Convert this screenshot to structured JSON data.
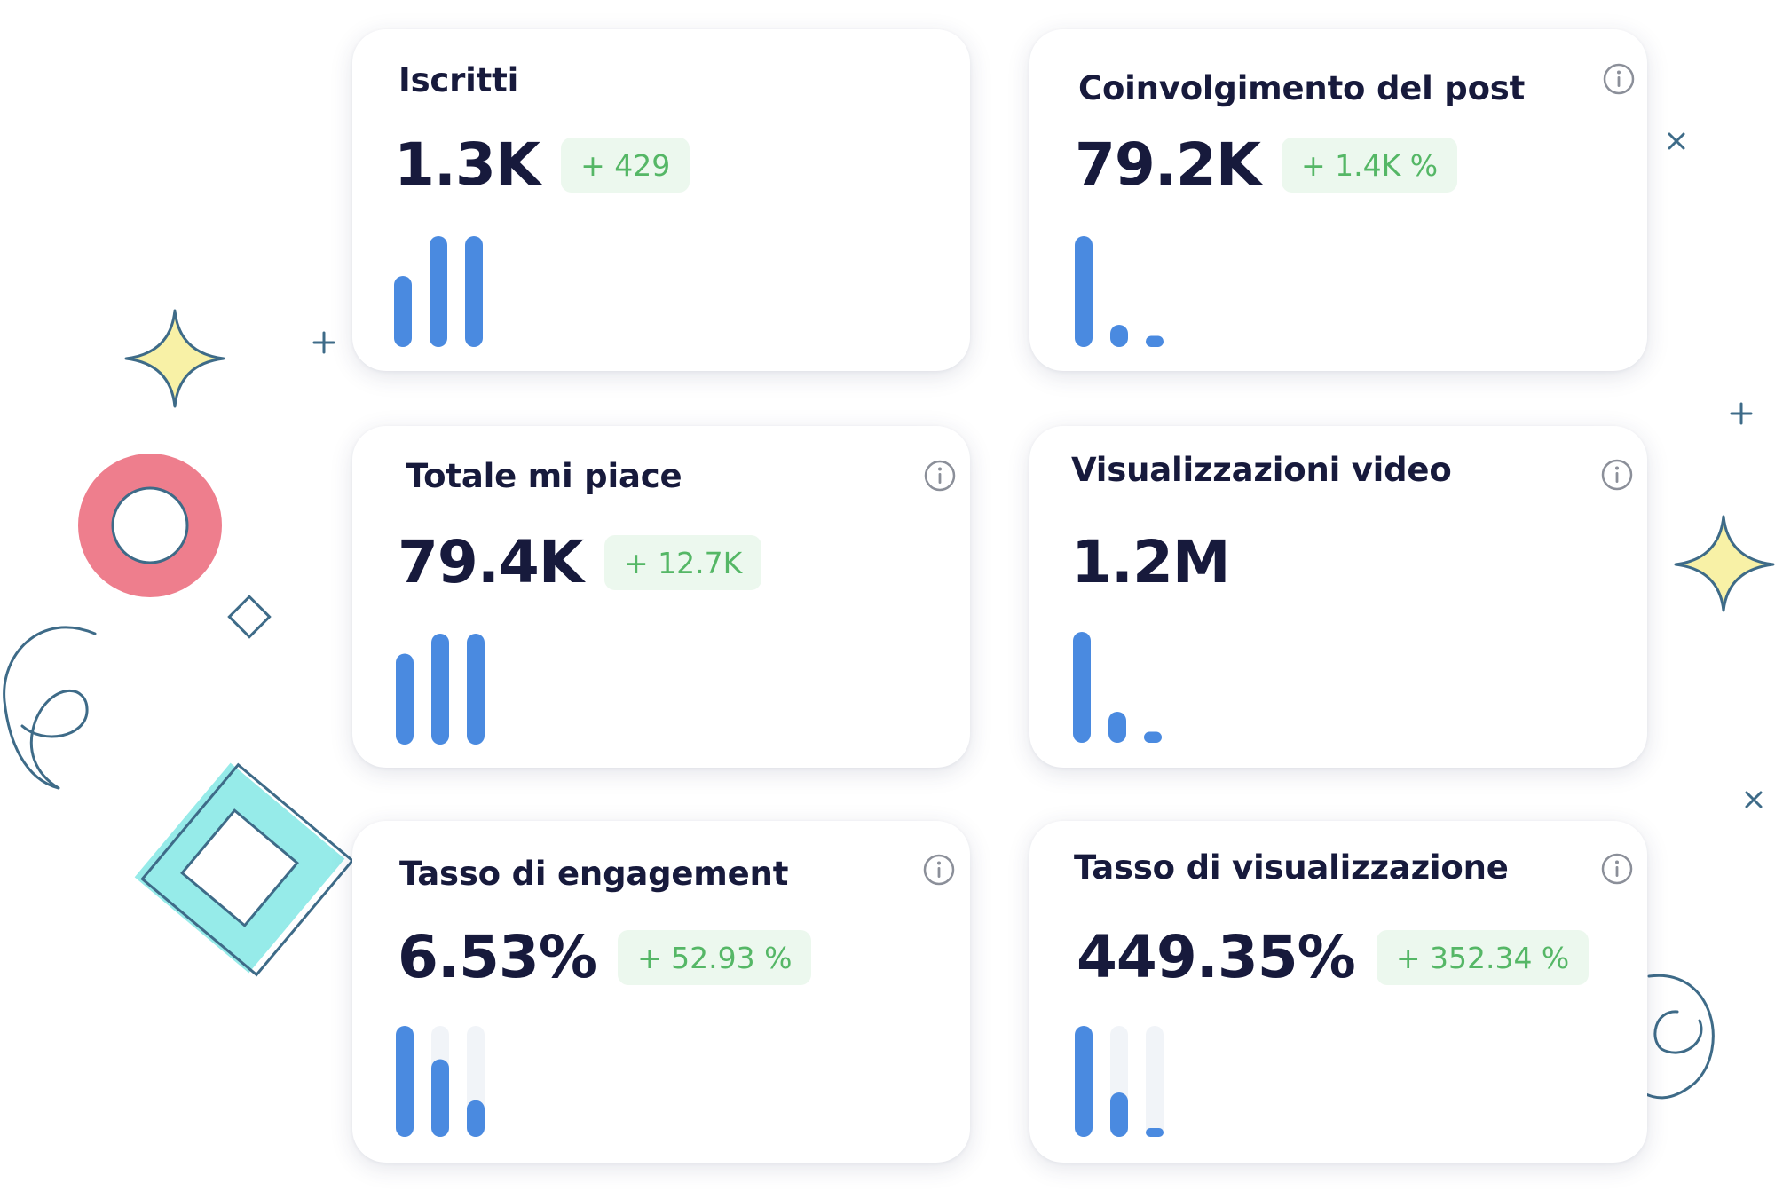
{
  "colors": {
    "bar": "#4a8ae0",
    "badge_bg": "#ecf8ee",
    "badge_text": "#55b766",
    "title_text": "#171a3c",
    "decor_pink": "#ee7e8d",
    "decor_teal": "#96ebe9",
    "decor_outline": "#3e6b88",
    "decor_star": "#f8f1a6"
  },
  "cards": [
    {
      "title": "Iscritti",
      "value": "1.3K",
      "delta": "+ 429",
      "info_icon": false,
      "bars": [
        0.64,
        1.0,
        1.0
      ],
      "tracks": false
    },
    {
      "title": "Coinvolgimento del post",
      "value": "79.2K",
      "delta": "+ 1.4K %",
      "info_icon": true,
      "bars": [
        1.0,
        0.2,
        0.1
      ],
      "tracks": false
    },
    {
      "title": "Totale mi piace",
      "value": "79.4K",
      "delta": "+ 12.7K",
      "info_icon": true,
      "bars": [
        0.82,
        1.0,
        1.0
      ],
      "tracks": false
    },
    {
      "title": "Visualizzazioni video",
      "value": "1.2M",
      "delta": "",
      "info_icon": true,
      "bars": [
        1.0,
        0.28,
        0.1
      ],
      "tracks": false
    },
    {
      "title": "Tasso di engagement",
      "value": "6.53%",
      "delta": "+ 52.93 %",
      "info_icon": true,
      "bars": [
        1.0,
        0.7,
        0.33
      ],
      "tracks": true
    },
    {
      "title": "Tasso di visualizzazione",
      "value": "449.35%",
      "delta": "+ 352.34 %",
      "info_icon": true,
      "bars": [
        1.0,
        0.4,
        0.08
      ],
      "tracks": true
    }
  ]
}
